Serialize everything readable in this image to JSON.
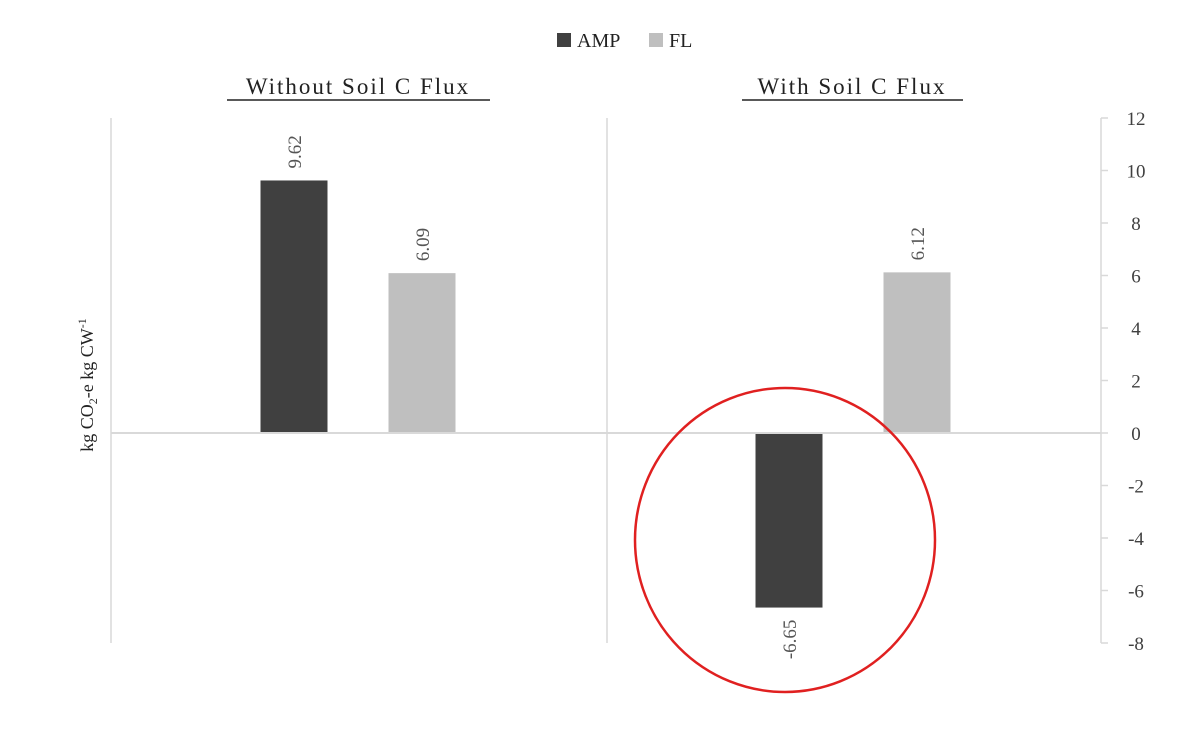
{
  "chart_data": {
    "type": "bar",
    "ylabel": {
      "prefix": "kg CO",
      "sub": "2",
      "mid": "-e kg CW",
      "sup": "-1"
    },
    "ylim": [
      -8,
      12
    ],
    "yticks": [
      12,
      10,
      8,
      6,
      4,
      2,
      0,
      -2,
      -4,
      -6,
      -8
    ],
    "legend_position": "top-center",
    "panels": [
      {
        "title": "Without Soil C Flux"
      },
      {
        "title": "With Soil C Flux"
      }
    ],
    "series": [
      {
        "name": "AMP",
        "color": "#404040",
        "values": [
          9.62,
          -6.65
        ],
        "labels": [
          "9.62",
          "-6.65"
        ]
      },
      {
        "name": "FL",
        "color": "#bfbfbf",
        "values": [
          6.09,
          6.12
        ],
        "labels": [
          "6.09",
          "6.12"
        ]
      }
    ],
    "annotations": [
      {
        "type": "circle",
        "color": "#e02020",
        "encloses": "With Soil C Flux / AMP bar"
      }
    ]
  }
}
